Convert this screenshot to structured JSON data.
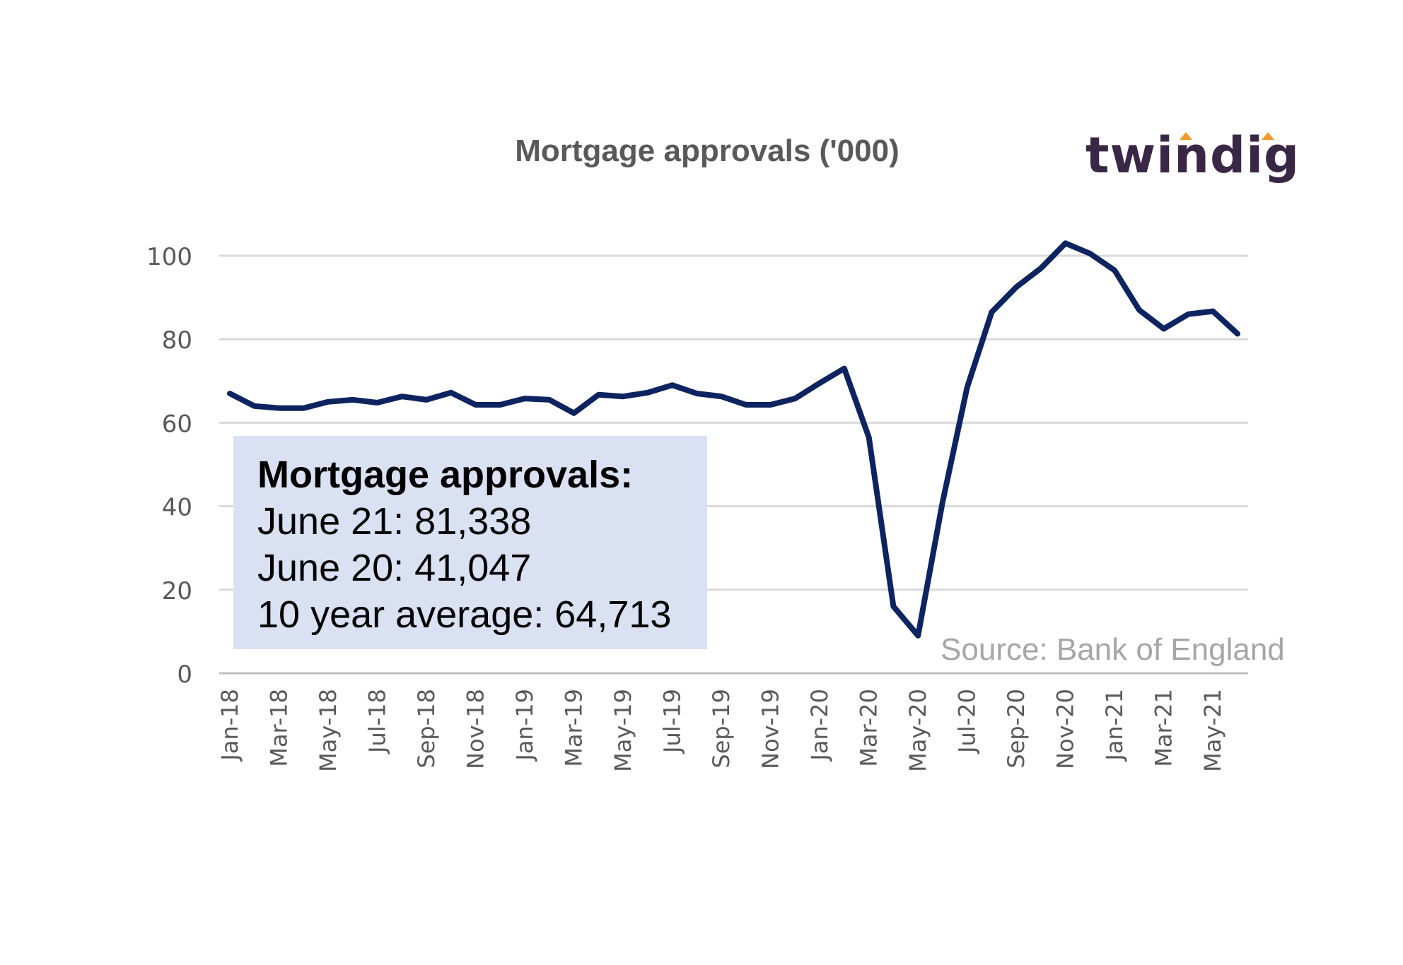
{
  "chart_data": {
    "type": "line",
    "title": "Mortgage approvals ('000)",
    "xlabel": "",
    "ylabel": "",
    "ylim": [
      0,
      100
    ],
    "yticks": [
      0,
      20,
      40,
      60,
      80,
      100
    ],
    "grid": true,
    "line_color": "#0d2460",
    "x": [
      "Jan-18",
      "Feb-18",
      "Mar-18",
      "Apr-18",
      "May-18",
      "Jun-18",
      "Jul-18",
      "Aug-18",
      "Sep-18",
      "Oct-18",
      "Nov-18",
      "Dec-18",
      "Jan-19",
      "Feb-19",
      "Mar-19",
      "Apr-19",
      "May-19",
      "Jun-19",
      "Jul-19",
      "Aug-19",
      "Sep-19",
      "Oct-19",
      "Nov-19",
      "Dec-19",
      "Jan-20",
      "Feb-20",
      "Mar-20",
      "Apr-20",
      "May-20",
      "Jun-20",
      "Jul-20",
      "Aug-20",
      "Sep-20",
      "Oct-20",
      "Nov-20",
      "Dec-20",
      "Jan-21",
      "Feb-21",
      "Mar-21",
      "Apr-21",
      "May-21",
      "Jun-21"
    ],
    "x_tick_labels": [
      "Jan-18",
      "Mar-18",
      "May-18",
      "Jul-18",
      "Sep-18",
      "Nov-18",
      "Jan-19",
      "Mar-19",
      "May-19",
      "Jul-19",
      "Sep-19",
      "Nov-19",
      "Jan-20",
      "Mar-20",
      "May-20",
      "Jul-20",
      "Sep-20",
      "Nov-20",
      "Jan-21",
      "Mar-21",
      "May-21"
    ],
    "series": [
      {
        "values": [
          67,
          64,
          63.5,
          63.5,
          65,
          65.5,
          64.8,
          66.3,
          65.5,
          67.2,
          64.3,
          64.3,
          65.8,
          65.5,
          62.3,
          66.7,
          66.3,
          67.2,
          69,
          67,
          66.3,
          64.3,
          64.3,
          65.8,
          69.5,
          73,
          56.5,
          16,
          9,
          41,
          68.5,
          86.5,
          92.5,
          97,
          103,
          100.5,
          96.5,
          87,
          82.5,
          86,
          86.7,
          81.3
        ]
      }
    ]
  },
  "logo": {
    "text": "twindig",
    "accent_color": "#f39a2b",
    "text_color": "#3a2746"
  },
  "callout": {
    "heading": "Mortgage approvals:",
    "line1": "June 21: 81,338",
    "line2": "June 20: 41,047",
    "line3": "10 year average: 64,713",
    "background": "#d9e1f2"
  },
  "source": "Source: Bank of England"
}
